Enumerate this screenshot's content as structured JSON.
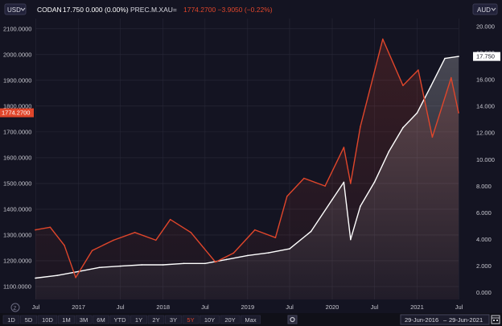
{
  "header": {
    "left_currency": "USD",
    "right_currency": "AUD",
    "codan_symbol": "CODAN",
    "codan_quote": "17.750  0.000 (0.00%)",
    "xau_symbol": "PREC.M.XAU=",
    "xau_quote": "1774.2700  −3.9050 (−0.22%)"
  },
  "price_tags": {
    "left": "1774.2700",
    "right": "17.750"
  },
  "range_buttons": [
    "1D",
    "5D",
    "10D",
    "1M",
    "3M",
    "6M",
    "YTD",
    "1Y",
    "2Y",
    "3Y",
    "5Y",
    "10Y",
    "20Y",
    "Max"
  ],
  "selected_range": "5Y",
  "date_range": {
    "from": "29-Jun-2016",
    "to": "29-Jun-2021"
  },
  "colors": {
    "background": "#141422",
    "codan_line": "#ffffff",
    "xau_line": "#e0462b",
    "grid": "#2a2a3a",
    "axis_text": "#c8c8d0",
    "selected_range": "#e0462b"
  },
  "icons": {
    "dropdown": "chevron-down-icon",
    "settings": "gear-icon",
    "calendar": "calendar-icon",
    "zoom": "zoom-icon"
  },
  "chart_data": {
    "type": "line",
    "x_ticks": [
      "Jul",
      "2017",
      "Jul",
      "2018",
      "Jul",
      "2019",
      "Jul",
      "2020",
      "Jul",
      "2021",
      "Jul"
    ],
    "y_left_ticks": [
      "1100.0000",
      "1200.0000",
      "1300.0000",
      "1400.0000",
      "1500.0000",
      "1600.0000",
      "1700.0000",
      "1800.0000",
      "1900.0000",
      "2000.0000",
      "2100.0000"
    ],
    "y_right_ticks": [
      "0.000",
      "2.000",
      "4.000",
      "6.000",
      "8.000",
      "10.000",
      "12.000",
      "14.000",
      "16.000",
      "18.000",
      "20.000"
    ],
    "ylim_left": [
      1050,
      2140
    ],
    "ylim_right": [
      -0.5,
      20.6
    ],
    "x_range": [
      "2016-06-29",
      "2021-06-29"
    ],
    "series": [
      {
        "name": "CODAN",
        "axis": "right",
        "points": [
          [
            "2016-06-29",
            1.1
          ],
          [
            "2016-10-01",
            1.3
          ],
          [
            "2017-01-01",
            1.6
          ],
          [
            "2017-04-01",
            1.9
          ],
          [
            "2017-07-01",
            2.0
          ],
          [
            "2017-10-01",
            2.1
          ],
          [
            "2018-01-01",
            2.1
          ],
          [
            "2018-04-01",
            2.2
          ],
          [
            "2018-07-01",
            2.2
          ],
          [
            "2018-10-01",
            2.5
          ],
          [
            "2019-01-01",
            2.8
          ],
          [
            "2019-04-01",
            3.0
          ],
          [
            "2019-07-01",
            3.3
          ],
          [
            "2019-10-01",
            4.6
          ],
          [
            "2020-01-01",
            7.0
          ],
          [
            "2020-02-20",
            8.3
          ],
          [
            "2020-03-20",
            4.0
          ],
          [
            "2020-05-01",
            6.5
          ],
          [
            "2020-07-01",
            8.3
          ],
          [
            "2020-09-01",
            10.6
          ],
          [
            "2020-11-01",
            12.4
          ],
          [
            "2021-01-01",
            13.5
          ],
          [
            "2021-03-01",
            15.5
          ],
          [
            "2021-05-01",
            17.6
          ],
          [
            "2021-06-29",
            17.75
          ]
        ]
      },
      {
        "name": "PREC.M.XAU=",
        "axis": "left",
        "points": [
          [
            "2016-06-29",
            1320
          ],
          [
            "2016-09-01",
            1330
          ],
          [
            "2016-11-01",
            1260
          ],
          [
            "2016-12-20",
            1135
          ],
          [
            "2017-03-01",
            1240
          ],
          [
            "2017-06-01",
            1280
          ],
          [
            "2017-09-01",
            1310
          ],
          [
            "2017-12-01",
            1280
          ],
          [
            "2018-02-01",
            1360
          ],
          [
            "2018-05-01",
            1310
          ],
          [
            "2018-08-15",
            1195
          ],
          [
            "2018-11-01",
            1230
          ],
          [
            "2019-02-01",
            1320
          ],
          [
            "2019-05-01",
            1290
          ],
          [
            "2019-06-20",
            1450
          ],
          [
            "2019-09-01",
            1520
          ],
          [
            "2019-12-01",
            1490
          ],
          [
            "2020-02-20",
            1640
          ],
          [
            "2020-03-20",
            1500
          ],
          [
            "2020-05-01",
            1720
          ],
          [
            "2020-08-06",
            2060
          ],
          [
            "2020-11-01",
            1880
          ],
          [
            "2021-01-06",
            1940
          ],
          [
            "2021-03-08",
            1680
          ],
          [
            "2021-05-28",
            1910
          ],
          [
            "2021-06-29",
            1774.27
          ]
        ]
      }
    ],
    "grid": true,
    "legend": "top-left"
  }
}
